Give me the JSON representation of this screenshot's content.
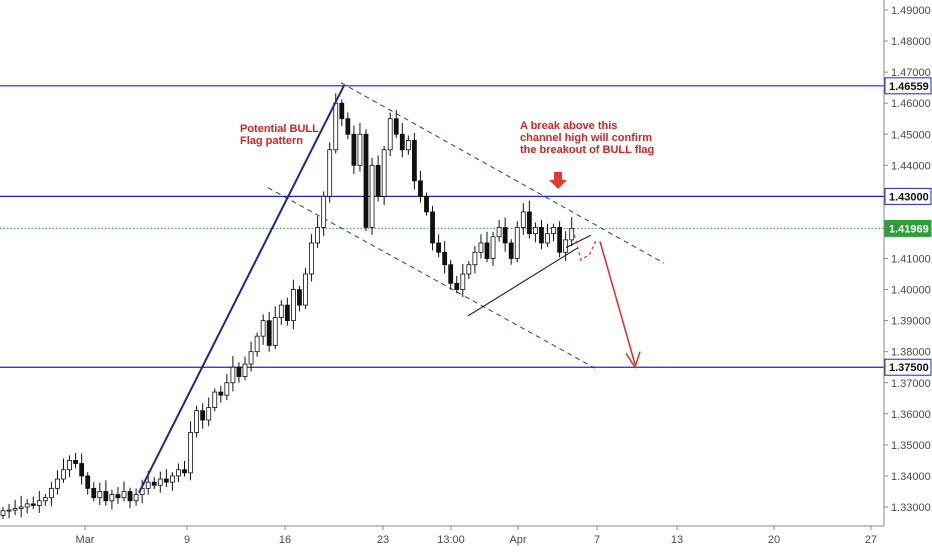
{
  "chart_data": {
    "type": "candlestick",
    "title": "",
    "xlabel": "",
    "ylabel": "",
    "ylim": [
      1.325,
      1.495
    ],
    "grid": false,
    "x_ticks": [
      "Mar",
      "9",
      "16",
      "23",
      "13:00",
      "Apr",
      "7",
      "13",
      "20",
      "27"
    ],
    "y_ticks": [
      "1.49000",
      "1.48000",
      "1.47000",
      "1.46000",
      "1.45000",
      "1.44000",
      "1.43000",
      "1.42000",
      "1.41000",
      "1.40000",
      "1.39000",
      "1.38000",
      "1.37000",
      "1.36000",
      "1.35000",
      "1.34000",
      "1.33000"
    ],
    "levels": [
      {
        "value": 1.46559,
        "label": "1.46559",
        "style": "resistance"
      },
      {
        "value": 1.43,
        "label": "1.43000",
        "style": "resistance"
      },
      {
        "value": 1.41969,
        "label": "1.41969",
        "style": "last-price"
      },
      {
        "value": 1.375,
        "label": "1.37500",
        "style": "support"
      }
    ],
    "annotations": [
      {
        "lines": [
          "Potential BULL",
          "Flag pattern"
        ]
      },
      {
        "lines": [
          "A break above this",
          "channel high will confirm",
          "the breakout of BULL flag"
        ]
      }
    ],
    "candle_closes": [
      1.3288,
      1.329,
      1.3295,
      1.33,
      1.331,
      1.3305,
      1.332,
      1.333,
      1.336,
      1.339,
      1.342,
      1.345,
      1.344,
      1.34,
      1.336,
      1.333,
      1.335,
      1.332,
      1.334,
      1.333,
      1.335,
      1.332,
      1.334,
      1.336,
      1.338,
      1.337,
      1.339,
      1.338,
      1.34,
      1.342,
      1.341,
      1.354,
      1.361,
      1.358,
      1.362,
      1.367,
      1.366,
      1.37,
      1.375,
      1.372,
      1.376,
      1.38,
      1.385,
      1.39,
      1.382,
      1.391,
      1.395,
      1.39,
      1.4,
      1.395,
      1.405,
      1.415,
      1.42,
      1.43,
      1.445,
      1.46,
      1.455,
      1.45,
      1.44,
      1.45,
      1.42,
      1.44,
      1.43,
      1.445,
      1.455,
      1.45,
      1.445,
      1.448,
      1.435,
      1.43,
      1.425,
      1.415,
      1.412,
      1.408,
      1.402,
      1.4,
      1.405,
      1.408,
      1.412,
      1.415,
      1.41,
      1.417,
      1.42,
      1.415,
      1.41,
      1.42,
      1.425,
      1.418,
      1.42,
      1.415,
      1.418,
      1.42,
      1.412,
      1.416,
      1.4197
    ]
  }
}
